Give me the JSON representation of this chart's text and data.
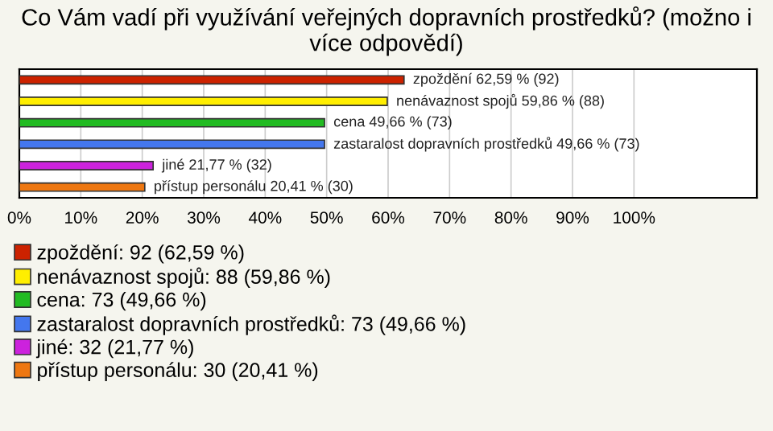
{
  "chart_data": {
    "type": "bar",
    "orientation": "horizontal",
    "title": "Co Vám vadí při využívání veřejných dopravních prostředků? (možno i více odpovědí)",
    "categories": [
      null,
      null,
      null,
      null,
      null,
      null
    ],
    "series": [
      {
        "name": "zpoždění: 92 (62,59 %)",
        "color": "#cc2200",
        "values": [
          62.59,
          null,
          null,
          null,
          null,
          null
        ],
        "value_labels": [
          "zpoždění 62,59 % (92)",
          null,
          null,
          null,
          null,
          null
        ]
      },
      {
        "name": "nenávaznost spojů: 88 (59,86 %)",
        "color": "#ffee00",
        "values": [
          null,
          59.86,
          null,
          null,
          null,
          null
        ],
        "value_labels": [
          null,
          "nenávaznost spojů 59,86 % (88)",
          null,
          null,
          null,
          null
        ]
      },
      {
        "name": "cena: 73 (49,66 %)",
        "color": "#22bb22",
        "values": [
          null,
          null,
          49.66,
          null,
          null,
          null
        ],
        "value_labels": [
          null,
          null,
          "cena 49,66 % (73)",
          null,
          null,
          null
        ]
      },
      {
        "name": "zastaralost dopravních prostředků: 73 (49,66 %)",
        "color": "#4477ee",
        "values": [
          null,
          null,
          null,
          49.66,
          null,
          null
        ],
        "value_labels": [
          null,
          null,
          null,
          "zastaralost dopravních prostředků 49,66 % (73)",
          null,
          null
        ]
      },
      {
        "name": "jiné: 32 (21,77 %)",
        "color": "#cc22dd",
        "values": [
          null,
          null,
          null,
          null,
          21.77,
          null
        ],
        "value_labels": [
          null,
          null,
          null,
          null,
          "jiné 21,77 % (32)",
          null
        ]
      },
      {
        "name": "přístup personálu: 30 (20,41 %)",
        "color": "#ee7711",
        "values": [
          null,
          null,
          null,
          null,
          null,
          20.41
        ],
        "value_labels": [
          null,
          null,
          null,
          null,
          null,
          "přístup personálu 20,41 % (30)"
        ]
      }
    ],
    "xlim": [
      0,
      120
    ],
    "xticks": [
      {
        "value": 0,
        "label": "0%"
      },
      {
        "value": 10,
        "label": "10%"
      },
      {
        "value": 20,
        "label": "20%"
      },
      {
        "value": 30,
        "label": "30%"
      },
      {
        "value": 40,
        "label": "40%"
      },
      {
        "value": 50,
        "label": "50%"
      },
      {
        "value": 60,
        "label": "60%"
      },
      {
        "value": 70,
        "label": "70%"
      },
      {
        "value": 80,
        "label": "80%"
      },
      {
        "value": 90,
        "label": "90%"
      },
      {
        "value": 100,
        "label": "100%"
      }
    ],
    "grid": "x",
    "legend": "bottom"
  }
}
